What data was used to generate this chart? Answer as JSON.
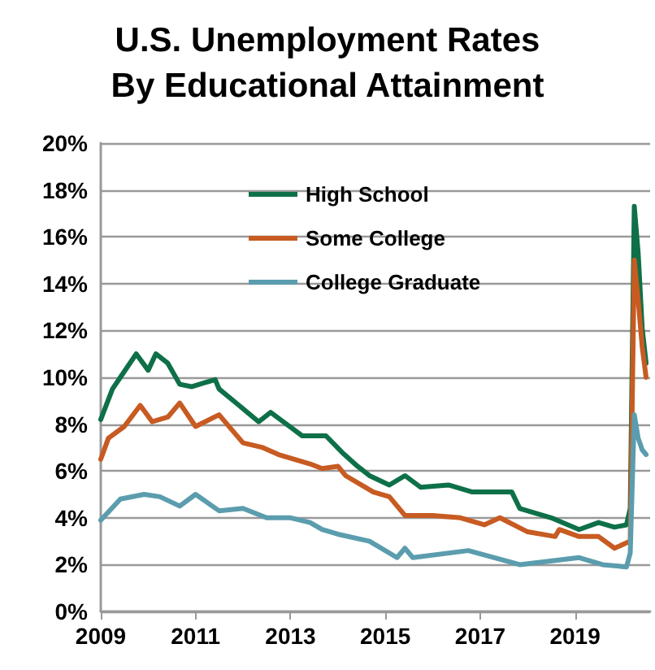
{
  "chart_data": {
    "type": "line",
    "title": "U.S. Unemployment Rates\nBy Educational Attainment",
    "series": [
      {
        "name": "High School",
        "color": "#0e7048",
        "x": [
          "2009-01",
          "2009-04",
          "2009-06",
          "2009-10",
          "2010-01",
          "2010-03",
          "2010-06",
          "2010-09",
          "2010-12",
          "2011-06",
          "2011-07",
          "2011-12",
          "2012-05",
          "2012-08",
          "2012-12",
          "2013-04",
          "2013-10",
          "2014-02",
          "2014-06",
          "2014-09",
          "2015-02",
          "2015-06",
          "2015-10",
          "2016-05",
          "2016-11",
          "2017-09",
          "2017-11",
          "2018-07",
          "2019-02",
          "2019-07",
          "2019-11",
          "2020-02",
          "2020-03",
          "2020-04",
          "2020-05",
          "2020-06",
          "2020-07"
        ],
        "values": [
          8.2,
          9.5,
          10.0,
          11.0,
          10.3,
          11.0,
          10.6,
          9.7,
          9.6,
          9.9,
          9.5,
          8.8,
          8.1,
          8.5,
          8.0,
          7.5,
          7.5,
          6.8,
          6.2,
          5.8,
          5.4,
          5.8,
          5.3,
          5.4,
          5.1,
          5.1,
          4.4,
          4.0,
          3.5,
          3.8,
          3.6,
          3.7,
          4.4,
          17.3,
          15.3,
          12.1,
          10.6
        ]
      },
      {
        "name": "Some College",
        "color": "#c75b22",
        "x": [
          "2009-01",
          "2009-03",
          "2009-07",
          "2009-11",
          "2010-02",
          "2010-06",
          "2010-09",
          "2011-01",
          "2011-07",
          "2012-01",
          "2012-06",
          "2012-10",
          "2013-06",
          "2013-09",
          "2014-01",
          "2014-03",
          "2014-08",
          "2014-10",
          "2015-02",
          "2015-06",
          "2016-01",
          "2016-08",
          "2017-02",
          "2017-06",
          "2018-01",
          "2018-08",
          "2018-09",
          "2019-02",
          "2019-07",
          "2019-11",
          "2020-03",
          "2020-04",
          "2020-05",
          "2020-06",
          "2020-07"
        ],
        "values": [
          6.5,
          7.4,
          7.9,
          8.8,
          8.1,
          8.3,
          8.9,
          7.9,
          8.4,
          7.2,
          7.0,
          6.7,
          6.3,
          6.1,
          6.2,
          5.8,
          5.3,
          5.1,
          4.9,
          4.1,
          4.1,
          4.0,
          3.7,
          4.0,
          3.4,
          3.2,
          3.5,
          3.2,
          3.2,
          2.7,
          3.0,
          15.0,
          13.3,
          11.3,
          10.0
        ]
      },
      {
        "name": "College Graduate",
        "color": "#5b9dae",
        "x": [
          "2009-01",
          "2009-06",
          "2009-12",
          "2010-04",
          "2010-09",
          "2011-01",
          "2011-07",
          "2012-01",
          "2012-07",
          "2013-01",
          "2013-06",
          "2013-09",
          "2014-01",
          "2014-09",
          "2015-04",
          "2015-06",
          "2015-08",
          "2016-10",
          "2017-11",
          "2019-02",
          "2019-08",
          "2020-02",
          "2020-03",
          "2020-04",
          "2020-05",
          "2020-06",
          "2020-07"
        ],
        "values": [
          3.9,
          4.8,
          5.0,
          4.9,
          4.5,
          5.0,
          4.3,
          4.4,
          4.0,
          4.0,
          3.8,
          3.5,
          3.3,
          3.0,
          2.3,
          2.7,
          2.3,
          2.6,
          2.0,
          2.3,
          2.0,
          1.9,
          2.5,
          8.4,
          7.4,
          6.9,
          6.7
        ]
      }
    ],
    "xlim": [
      "2009-01",
      "2020-08"
    ],
    "xticks": [
      {
        "value": "2009",
        "label": "2009"
      },
      {
        "value": "2011",
        "label": "2011"
      },
      {
        "value": "2013",
        "label": "2013"
      },
      {
        "value": "2015",
        "label": "2015"
      },
      {
        "value": "2017",
        "label": "2017"
      },
      {
        "value": "2019",
        "label": "2019"
      }
    ],
    "ylim": [
      0,
      20
    ],
    "yticks": [
      {
        "value": 0,
        "label": "0%"
      },
      {
        "value": 2,
        "label": "2%"
      },
      {
        "value": 4,
        "label": "4%"
      },
      {
        "value": 6,
        "label": "6%"
      },
      {
        "value": 8,
        "label": "8%"
      },
      {
        "value": 10,
        "label": "10%"
      },
      {
        "value": 12,
        "label": "12%"
      },
      {
        "value": 14,
        "label": "14%"
      },
      {
        "value": 16,
        "label": "16%"
      },
      {
        "value": 18,
        "label": "18%"
      },
      {
        "value": 20,
        "label": "20%"
      }
    ],
    "grid": "y",
    "legend": "top",
    "marker": "none",
    "line_style": "solid"
  }
}
